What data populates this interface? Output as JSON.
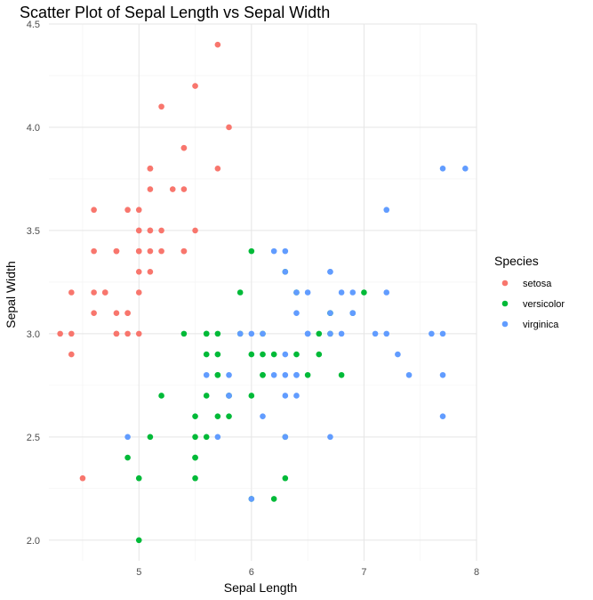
{
  "chart_data": {
    "type": "scatter",
    "title": "Scatter Plot of Sepal Length vs Sepal Width",
    "xlabel": "Sepal Length",
    "ylabel": "Sepal Width",
    "xlim": [
      4.2,
      8.0
    ],
    "ylim": [
      1.9,
      4.5
    ],
    "x_ticks": [
      5,
      6,
      7,
      8
    ],
    "y_ticks": [
      "2.0",
      "2.5",
      "3.0",
      "3.5",
      "4.0",
      "4.5"
    ],
    "grid": true,
    "legend": {
      "title": "Species",
      "position": "right"
    },
    "series": [
      {
        "name": "setosa",
        "color": "#F8766D",
        "x": [
          5.1,
          4.9,
          4.7,
          4.6,
          5.0,
          5.4,
          4.6,
          5.0,
          4.4,
          4.9,
          5.4,
          4.8,
          4.8,
          4.3,
          5.8,
          5.7,
          5.4,
          5.1,
          5.7,
          5.1,
          5.4,
          5.1,
          4.6,
          5.1,
          4.8,
          5.0,
          5.0,
          5.2,
          5.2,
          4.7,
          4.8,
          5.4,
          5.2,
          5.5,
          4.9,
          5.0,
          5.5,
          4.9,
          4.4,
          5.1,
          5.0,
          4.5,
          4.4,
          5.0,
          5.1,
          4.8,
          5.1,
          4.6,
          5.3,
          5.0
        ],
        "y": [
          3.5,
          3.0,
          3.2,
          3.1,
          3.6,
          3.9,
          3.4,
          3.4,
          2.9,
          3.1,
          3.7,
          3.4,
          3.0,
          3.0,
          4.0,
          4.4,
          3.9,
          3.5,
          3.8,
          3.8,
          3.4,
          3.7,
          3.6,
          3.3,
          3.4,
          3.0,
          3.4,
          3.5,
          3.4,
          3.2,
          3.1,
          3.4,
          4.1,
          4.2,
          3.1,
          3.2,
          3.5,
          3.6,
          3.0,
          3.4,
          3.5,
          2.3,
          3.2,
          3.5,
          3.8,
          3.0,
          3.8,
          3.2,
          3.7,
          3.3
        ]
      },
      {
        "name": "versicolor",
        "color": "#00BA38",
        "x": [
          7.0,
          6.4,
          6.9,
          5.5,
          6.5,
          5.7,
          6.3,
          4.9,
          6.6,
          5.2,
          5.0,
          5.9,
          6.0,
          6.1,
          5.6,
          6.7,
          5.6,
          5.8,
          6.2,
          5.6,
          5.9,
          6.1,
          6.3,
          6.1,
          6.4,
          6.6,
          6.8,
          6.7,
          6.0,
          5.7,
          5.5,
          5.5,
          5.8,
          6.0,
          5.4,
          6.0,
          6.7,
          6.3,
          5.6,
          5.5,
          5.5,
          6.1,
          5.8,
          5.0,
          5.6,
          5.7,
          5.7,
          6.2,
          5.1,
          5.7
        ],
        "y": [
          3.2,
          3.2,
          3.1,
          2.3,
          2.8,
          2.8,
          3.3,
          2.4,
          2.9,
          2.7,
          2.0,
          3.0,
          2.2,
          2.9,
          2.9,
          3.1,
          3.0,
          2.7,
          2.2,
          2.5,
          3.2,
          2.8,
          2.5,
          2.8,
          2.9,
          3.0,
          2.8,
          3.0,
          2.9,
          2.6,
          2.4,
          2.4,
          2.7,
          2.7,
          3.0,
          3.4,
          3.1,
          2.3,
          3.0,
          2.5,
          2.6,
          3.0,
          2.6,
          2.3,
          2.7,
          3.0,
          2.9,
          2.9,
          2.5,
          2.8
        ]
      },
      {
        "name": "virginica",
        "color": "#619CFF",
        "x": [
          6.3,
          5.8,
          7.1,
          6.3,
          6.5,
          7.6,
          4.9,
          7.3,
          6.7,
          7.2,
          6.5,
          6.4,
          6.8,
          5.7,
          5.8,
          6.4,
          6.5,
          7.7,
          7.7,
          6.0,
          6.9,
          5.6,
          7.7,
          6.3,
          6.7,
          7.2,
          6.2,
          6.1,
          6.4,
          7.2,
          7.4,
          7.9,
          6.4,
          6.3,
          6.1,
          7.7,
          6.3,
          6.4,
          6.0,
          6.9,
          6.7,
          6.9,
          5.8,
          6.8,
          6.7,
          6.7,
          6.3,
          6.5,
          6.2,
          5.9
        ],
        "y": [
          3.3,
          2.7,
          3.0,
          2.9,
          3.0,
          3.0,
          2.5,
          2.9,
          2.5,
          3.6,
          3.2,
          2.7,
          3.0,
          2.5,
          2.8,
          3.2,
          3.0,
          3.8,
          2.6,
          2.2,
          3.2,
          2.8,
          2.8,
          2.7,
          3.3,
          3.2,
          2.8,
          3.0,
          2.8,
          3.0,
          2.8,
          3.8,
          2.8,
          2.8,
          2.6,
          3.0,
          3.4,
          3.1,
          3.0,
          3.1,
          3.1,
          3.1,
          2.7,
          3.2,
          3.3,
          3.0,
          2.5,
          3.0,
          3.4,
          3.0
        ]
      }
    ]
  }
}
